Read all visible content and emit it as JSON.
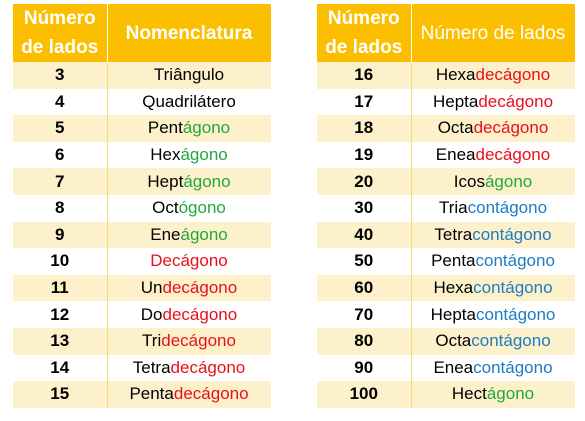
{
  "colors": {
    "header_bg": "#fbbf00",
    "header_text": "#ffffff",
    "odd_row": "#fdf1cc",
    "even_row": "#ffffff",
    "agono": "#21a840",
    "decagono": "#e8101c",
    "contagono": "#1d7cc2"
  },
  "left": {
    "headers": [
      "Número de lados",
      "Nomenclatura"
    ],
    "rows": [
      {
        "n": "3",
        "parts": [
          [
            "Triângulo",
            "k"
          ]
        ]
      },
      {
        "n": "4",
        "parts": [
          [
            "Quadrilátero",
            "k"
          ]
        ]
      },
      {
        "n": "5",
        "parts": [
          [
            "Pent",
            "k"
          ],
          [
            "ágono",
            "g"
          ]
        ]
      },
      {
        "n": "6",
        "parts": [
          [
            "Hex",
            "k"
          ],
          [
            "ágono",
            "g"
          ]
        ]
      },
      {
        "n": "7",
        "parts": [
          [
            "Hept",
            "k"
          ],
          [
            "ágono",
            "g"
          ]
        ]
      },
      {
        "n": "8",
        "parts": [
          [
            "Oct",
            "k"
          ],
          [
            "ógono",
            "g"
          ]
        ]
      },
      {
        "n": "9",
        "parts": [
          [
            "Ene",
            "k"
          ],
          [
            "ágono",
            "g"
          ]
        ]
      },
      {
        "n": "10",
        "parts": [
          [
            "Decágono",
            "r"
          ]
        ]
      },
      {
        "n": "11",
        "parts": [
          [
            "Un",
            "k"
          ],
          [
            "decágono",
            "r"
          ]
        ]
      },
      {
        "n": "12",
        "parts": [
          [
            "Do",
            "k"
          ],
          [
            "decágono",
            "r"
          ]
        ]
      },
      {
        "n": "13",
        "parts": [
          [
            "Tri",
            "k"
          ],
          [
            "decágono",
            "r"
          ]
        ]
      },
      {
        "n": "14",
        "parts": [
          [
            "Tetra",
            "k"
          ],
          [
            "decágono",
            "r"
          ]
        ]
      },
      {
        "n": "15",
        "parts": [
          [
            "Penta",
            "k"
          ],
          [
            "decágono",
            "r"
          ]
        ]
      }
    ]
  },
  "right": {
    "headers": [
      "Número de lados",
      "Número de lados"
    ],
    "rows": [
      {
        "n": "16",
        "parts": [
          [
            "Hexa",
            "k"
          ],
          [
            "decágono",
            "r"
          ]
        ]
      },
      {
        "n": "17",
        "parts": [
          [
            "Hepta",
            "k"
          ],
          [
            "decágono",
            "r"
          ]
        ]
      },
      {
        "n": "18",
        "parts": [
          [
            "Octa",
            "k"
          ],
          [
            "decágono",
            "r"
          ]
        ]
      },
      {
        "n": "19",
        "parts": [
          [
            "Enea",
            "k"
          ],
          [
            "decágono",
            "r"
          ]
        ]
      },
      {
        "n": "20",
        "parts": [
          [
            "Icos",
            "k"
          ],
          [
            "ágono",
            "g"
          ]
        ]
      },
      {
        "n": "30",
        "parts": [
          [
            "Tria",
            "k"
          ],
          [
            "contágono",
            "b"
          ]
        ]
      },
      {
        "n": "40",
        "parts": [
          [
            "Tetra",
            "k"
          ],
          [
            "contágono",
            "b"
          ]
        ]
      },
      {
        "n": "50",
        "parts": [
          [
            "Penta",
            "k"
          ],
          [
            "contágono",
            "b"
          ]
        ]
      },
      {
        "n": "60",
        "parts": [
          [
            "Hexa",
            "k"
          ],
          [
            "contágono",
            "b"
          ]
        ]
      },
      {
        "n": "70",
        "parts": [
          [
            "Hepta",
            "k"
          ],
          [
            "contágono",
            "b"
          ]
        ]
      },
      {
        "n": "80",
        "parts": [
          [
            "Octa",
            "k"
          ],
          [
            "contágono",
            "b"
          ]
        ]
      },
      {
        "n": "90",
        "parts": [
          [
            "Enea",
            "k"
          ],
          [
            "contágono",
            "b"
          ]
        ]
      },
      {
        "n": "100",
        "parts": [
          [
            "Hect",
            "k"
          ],
          [
            "ágono",
            "g"
          ]
        ]
      }
    ]
  }
}
